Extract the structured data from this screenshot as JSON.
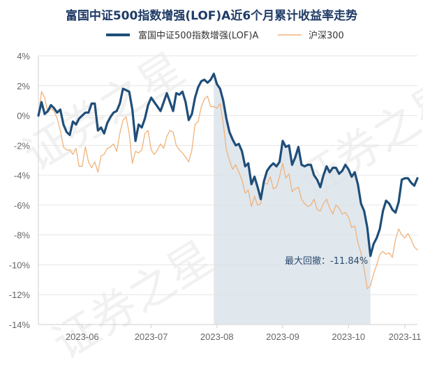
{
  "chart_data": {
    "type": "line",
    "title": "富国中证500指数增强(LOF)A近6个月累计收益率走势",
    "xlabel": "",
    "ylabel": "",
    "ylim": [
      -14,
      4
    ],
    "yticks": [
      "4%",
      "2%",
      "0%",
      "-2%",
      "-4%",
      "-6%",
      "-8%",
      "-10%",
      "-12%",
      "-14%"
    ],
    "ytick_values": [
      4,
      2,
      0,
      -2,
      -4,
      -6,
      -8,
      -10,
      -12,
      -14
    ],
    "x_ticks": [
      "2023-06",
      "2023-07",
      "2023-08",
      "2023-09",
      "2023-10",
      "2023-11"
    ],
    "x_tick_indices": [
      14,
      36,
      57,
      78,
      99,
      117
    ],
    "grid": true,
    "legend_position": "top",
    "series": [
      {
        "name": "富国中证500指数增强(LOF)A",
        "color": "#1f4e79",
        "values": [
          0.0,
          0.9,
          0.1,
          0.3,
          0.7,
          0.5,
          0.2,
          0.4,
          -0.6,
          -1.1,
          -1.3,
          -0.4,
          -0.6,
          -0.2,
          0.0,
          0.2,
          0.2,
          0.8,
          0.8,
          -1.0,
          -0.8,
          -1.2,
          -0.5,
          -0.1,
          0.2,
          0.3,
          0.8,
          1.8,
          1.7,
          1.6,
          0.4,
          -1.7,
          -0.6,
          -0.8,
          -0.2,
          0.7,
          1.2,
          0.9,
          0.6,
          0.3,
          0.9,
          1.5,
          0.9,
          0.3,
          1.5,
          1.4,
          1.6,
          0.9,
          -0.3,
          0.1,
          1.2,
          1.9,
          2.3,
          2.4,
          2.2,
          2.4,
          2.8,
          2.1,
          1.8,
          1.0,
          -0.2,
          -1.1,
          -1.6,
          -2.0,
          -1.9,
          -2.4,
          -3.4,
          -3.2,
          -4.6,
          -4.1,
          -4.8,
          -5.6,
          -4.4,
          -3.7,
          -3.4,
          -3.2,
          -3.4,
          -3.1,
          -1.7,
          -2.1,
          -2.0,
          -3.3,
          -2.8,
          -2.1,
          -3.3,
          -3.4,
          -3.3,
          -3.3,
          -4.0,
          -4.3,
          -4.8,
          -4.0,
          -3.4,
          -3.8,
          -3.5,
          -3.5,
          -3.9,
          -3.7,
          -3.3,
          -3.6,
          -4.1,
          -3.8,
          -4.6,
          -5.9,
          -6.4,
          -7.5,
          -9.4,
          -8.6,
          -8.2,
          -7.6,
          -6.4,
          -5.7,
          -5.9,
          -6.3,
          -6.5,
          -5.8,
          -4.3,
          -4.2,
          -4.2,
          -4.5,
          -4.7,
          -4.2
        ]
      },
      {
        "name": "沪深300",
        "color": "#f0b27a",
        "values": [
          0.0,
          1.6,
          1.2,
          0.2,
          0.5,
          0.3,
          -0.2,
          -1.0,
          -2.1,
          -2.3,
          -2.3,
          -2.6,
          -2.2,
          -3.4,
          -3.4,
          -2.1,
          -3.1,
          -3.5,
          -3.1,
          -3.8,
          -2.7,
          -2.6,
          -2.2,
          -2.1,
          -1.9,
          -2.4,
          -1.2,
          -0.3,
          -0.1,
          -1.2,
          -3.2,
          -2.4,
          -2.5,
          -2.3,
          -1.2,
          -1.0,
          -2.3,
          -2.6,
          -2.3,
          -1.9,
          -2.2,
          -1.4,
          -1.0,
          -1.1,
          -2.0,
          -2.3,
          -2.5,
          -2.8,
          -3.1,
          -2.3,
          -0.6,
          -0.4,
          0.6,
          1.1,
          1.3,
          0.6,
          0.6,
          0.5,
          0.8,
          -0.5,
          -2.3,
          -3.0,
          -3.6,
          -3.3,
          -3.8,
          -4.3,
          -5.2,
          -5.0,
          -6.1,
          -5.4,
          -6.0,
          -5.9,
          -4.5,
          -4.6,
          -4.1,
          -4.9,
          -4.8,
          -4.1,
          -3.2,
          -4.2,
          -3.9,
          -5.1,
          -4.9,
          -4.8,
          -5.6,
          -5.9,
          -6.1,
          -6.0,
          -5.6,
          -6.3,
          -6.4,
          -5.9,
          -5.6,
          -6.2,
          -6.6,
          -6.0,
          -6.2,
          -6.6,
          -6.5,
          -6.8,
          -7.5,
          -7.4,
          -8.5,
          -9.2,
          -10.3,
          -11.6,
          -11.4,
          -10.6,
          -10.0,
          -9.3,
          -9.1,
          -9.3,
          -9.2,
          -9.5,
          -8.3,
          -7.6,
          -8.0,
          -8.2,
          -7.9,
          -8.3,
          -8.8,
          -9.0
        ]
      }
    ],
    "annotation": {
      "label": "最大回撤：-11.84%",
      "drawdown_start_index": 56,
      "drawdown_end_index": 106,
      "fill_color": "#dbe3ea"
    }
  },
  "watermark": [
    "证券之星",
    "证券之星",
    "证券之星"
  ]
}
